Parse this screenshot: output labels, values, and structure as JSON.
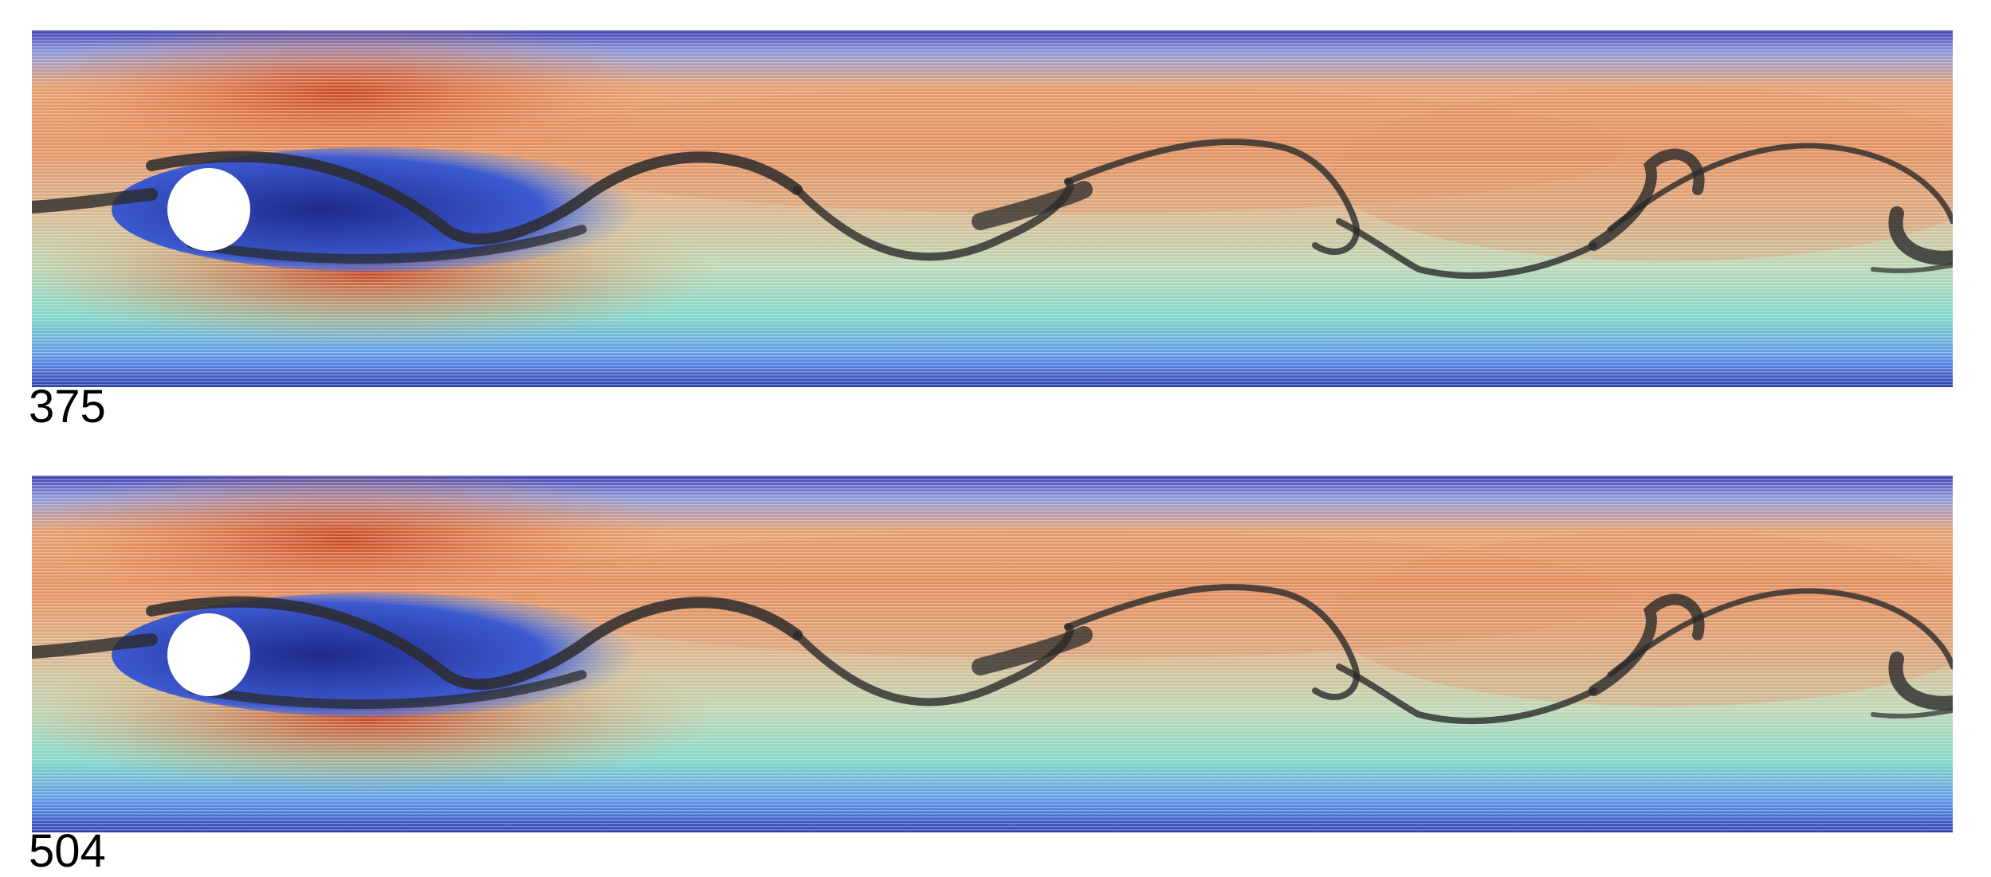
{
  "frames": [
    {
      "label": "375"
    },
    {
      "label": "504"
    }
  ],
  "colors": {
    "wall": "#3b3fb0",
    "near_wall": "#4a78e0",
    "mid": "#7fd6c8",
    "core": "#e88a50",
    "peak": "#c8401c",
    "recirculation": "#2a3ea8",
    "tracer": "#2b2b2b",
    "obstacle": "#ffffff"
  }
}
